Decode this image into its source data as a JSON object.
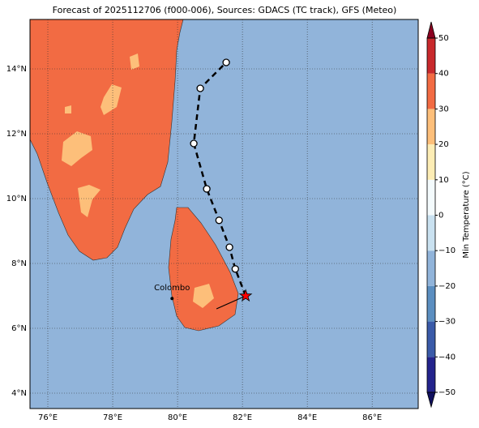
{
  "chart_data": {
    "type": "map",
    "title": "Forecast of 2025112706 (f000-006), Sources: GDACS (TC track), GFS (Meteo)",
    "xlim": [
      75.45,
      87.42
    ],
    "ylim": [
      3.525,
      15.525
    ],
    "xticks": [
      {
        "value": 76,
        "label": "76°E"
      },
      {
        "value": 78,
        "label": "78°E"
      },
      {
        "value": 80,
        "label": "80°E"
      },
      {
        "value": 82,
        "label": "82°E"
      },
      {
        "value": 84,
        "label": "84°E"
      },
      {
        "value": 86,
        "label": "86°E"
      }
    ],
    "yticks": [
      {
        "value": 4,
        "label": "4°N"
      },
      {
        "value": 6,
        "label": "6°N"
      },
      {
        "value": 8,
        "label": "8°N"
      },
      {
        "value": 10,
        "label": "10°N"
      },
      {
        "value": 12,
        "label": "12°N"
      },
      {
        "value": 14,
        "label": "14°N"
      }
    ],
    "grid": true,
    "track": {
      "lon": [
        82.1,
        81.78,
        81.6,
        81.28,
        80.9,
        80.5,
        80.7,
        81.5
      ],
      "lat": [
        7.0,
        7.83,
        8.5,
        9.33,
        10.3,
        11.7,
        13.4,
        14.2
      ],
      "color": "#000000"
    },
    "current": {
      "lon": 82.1,
      "lat": 7.0,
      "color": "#ff0000"
    },
    "motion": {
      "lon": 81.2,
      "lat": 6.6
    },
    "city": {
      "name": "Colombo",
      "lon": 79.83,
      "lat": 6.92
    },
    "colorbar": {
      "label": "Min Temperature (°C)",
      "ticks": [
        {
          "value": -50,
          "label": "−50"
        },
        {
          "value": -40,
          "label": "−40"
        },
        {
          "value": -30,
          "label": "−30"
        },
        {
          "value": -20,
          "label": "−20"
        },
        {
          "value": -10,
          "label": "−10"
        },
        0,
        10,
        20,
        30,
        40,
        50
      ],
      "colors": [
        "#23238c",
        "#3a5aa8",
        "#5b8ec0",
        "#91b4da",
        "#c9e1f0",
        "#f4fbfd",
        "#fdedb5",
        "#fdbf7a",
        "#f26b43",
        "#c8292c"
      ],
      "under_color": "#10105e",
      "over_color": "#8b0020"
    }
  }
}
